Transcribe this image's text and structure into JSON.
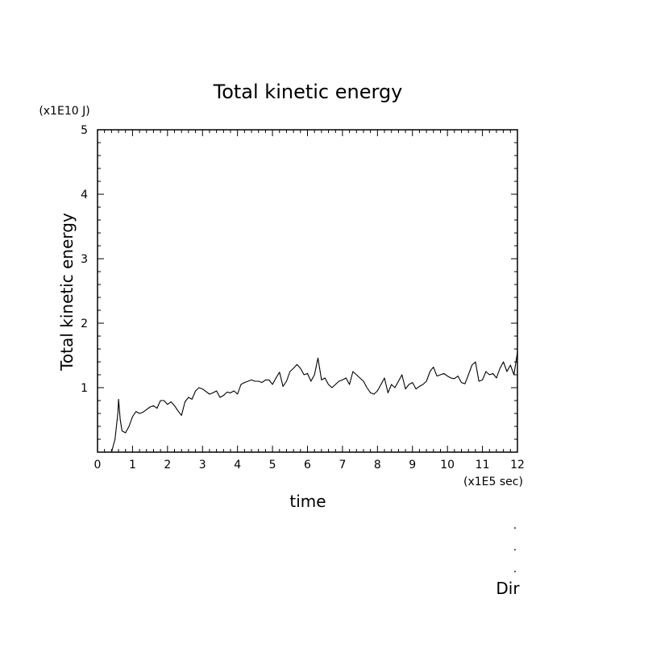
{
  "chart_data": {
    "type": "line",
    "title": "Total kinetic energy",
    "xlabel": "time",
    "ylabel": "Total kinetic energy",
    "x_unit": "(x1E5 sec)",
    "y_unit": "(x1E10 J)",
    "xlim": [
      0,
      12
    ],
    "ylim": [
      0,
      5
    ],
    "x_ticks": [
      "0",
      "1",
      "2",
      "3",
      "4",
      "5",
      "6",
      "7",
      "8",
      "9",
      "10",
      "11",
      "12"
    ],
    "y_ticks": [
      "1",
      "2",
      "3",
      "4",
      "5"
    ],
    "grid": false,
    "series": [
      {
        "x": [
          0.4,
          0.5,
          0.58,
          0.6,
          0.65,
          0.7,
          0.8,
          0.9,
          1.0,
          1.1,
          1.2,
          1.3,
          1.4,
          1.5,
          1.6,
          1.7,
          1.8,
          1.9,
          2.0,
          2.1,
          2.2,
          2.3,
          2.4,
          2.5,
          2.6,
          2.7,
          2.8,
          2.9,
          3.0,
          3.1,
          3.2,
          3.3,
          3.4,
          3.5,
          3.6,
          3.7,
          3.8,
          3.9,
          4.0,
          4.1,
          4.2,
          4.3,
          4.4,
          4.5,
          4.6,
          4.7,
          4.8,
          4.9,
          5.0,
          5.1,
          5.2,
          5.3,
          5.4,
          5.5,
          5.6,
          5.7,
          5.8,
          5.9,
          6.0,
          6.1,
          6.2,
          6.3,
          6.4,
          6.5,
          6.6,
          6.7,
          6.8,
          6.9,
          7.0,
          7.1,
          7.2,
          7.3,
          7.4,
          7.5,
          7.6,
          7.7,
          7.8,
          7.9,
          8.0,
          8.1,
          8.2,
          8.3,
          8.4,
          8.5,
          8.6,
          8.7,
          8.8,
          8.9,
          9.0,
          9.1,
          9.2,
          9.3,
          9.4,
          9.5,
          9.6,
          9.7,
          9.8,
          9.9,
          10.0,
          10.1,
          10.2,
          10.3,
          10.4,
          10.5,
          10.6,
          10.7,
          10.8,
          10.9,
          11.0,
          11.1,
          11.2,
          11.3,
          11.4,
          11.5,
          11.6,
          11.7,
          11.8,
          11.9,
          12.0
        ],
        "y": [
          0.0,
          0.2,
          0.6,
          0.82,
          0.5,
          0.33,
          0.3,
          0.4,
          0.55,
          0.63,
          0.6,
          0.62,
          0.66,
          0.7,
          0.72,
          0.68,
          0.8,
          0.8,
          0.74,
          0.78,
          0.72,
          0.64,
          0.57,
          0.78,
          0.85,
          0.82,
          0.95,
          1.0,
          0.98,
          0.94,
          0.9,
          0.92,
          0.95,
          0.85,
          0.88,
          0.93,
          0.92,
          0.95,
          0.9,
          1.05,
          1.08,
          1.1,
          1.12,
          1.1,
          1.1,
          1.08,
          1.12,
          1.12,
          1.05,
          1.15,
          1.24,
          1.02,
          1.1,
          1.25,
          1.3,
          1.36,
          1.3,
          1.2,
          1.22,
          1.1,
          1.2,
          1.46,
          1.12,
          1.15,
          1.05,
          1.0,
          1.05,
          1.1,
          1.12,
          1.15,
          1.05,
          1.25,
          1.2,
          1.15,
          1.1,
          1.0,
          0.92,
          0.9,
          0.95,
          1.05,
          1.15,
          0.92,
          1.05,
          1.0,
          1.1,
          1.2,
          0.98,
          1.05,
          1.08,
          0.98,
          1.02,
          1.05,
          1.1,
          1.25,
          1.32,
          1.18,
          1.2,
          1.22,
          1.18,
          1.15,
          1.14,
          1.18,
          1.08,
          1.06,
          1.2,
          1.35,
          1.4,
          1.1,
          1.12,
          1.25,
          1.2,
          1.22,
          1.15,
          1.3,
          1.4,
          1.25,
          1.35,
          1.2,
          1.55
        ]
      }
    ]
  },
  "annotation": {
    "marks": [
      ".",
      ".",
      "."
    ],
    "text": "Dir"
  }
}
